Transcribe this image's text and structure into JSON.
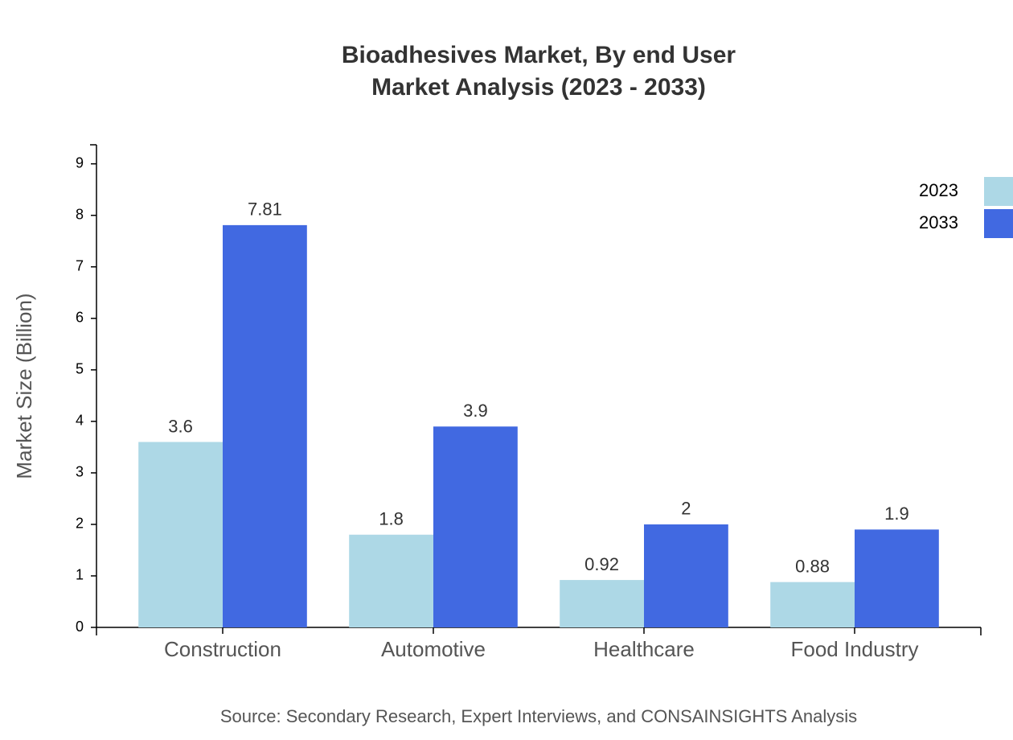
{
  "chart_data": {
    "type": "bar",
    "title": "Bioadhesives Market, By end User",
    "subtitle": "Market Analysis (2023 - 2033)",
    "y_label": "Market Size (Billion)",
    "source": "Source: Secondary Research, Expert Interviews, and CONSAINSIGHTS Analysis",
    "categories": [
      "Construction",
      "Automotive",
      "Healthcare",
      "Food Industry"
    ],
    "series": [
      {
        "name": "2023",
        "color": "#add8e6",
        "values": [
          3.6,
          1.8,
          0.92,
          0.88
        ]
      },
      {
        "name": "2033",
        "color": "#4169e1",
        "values": [
          7.81,
          3.9,
          2,
          1.9
        ]
      }
    ],
    "ylim": [
      0,
      9.37
    ],
    "yticks": [
      0,
      1,
      2,
      3,
      4,
      5,
      6,
      7,
      8,
      9
    ],
    "grid": false,
    "legend": "top-right"
  }
}
